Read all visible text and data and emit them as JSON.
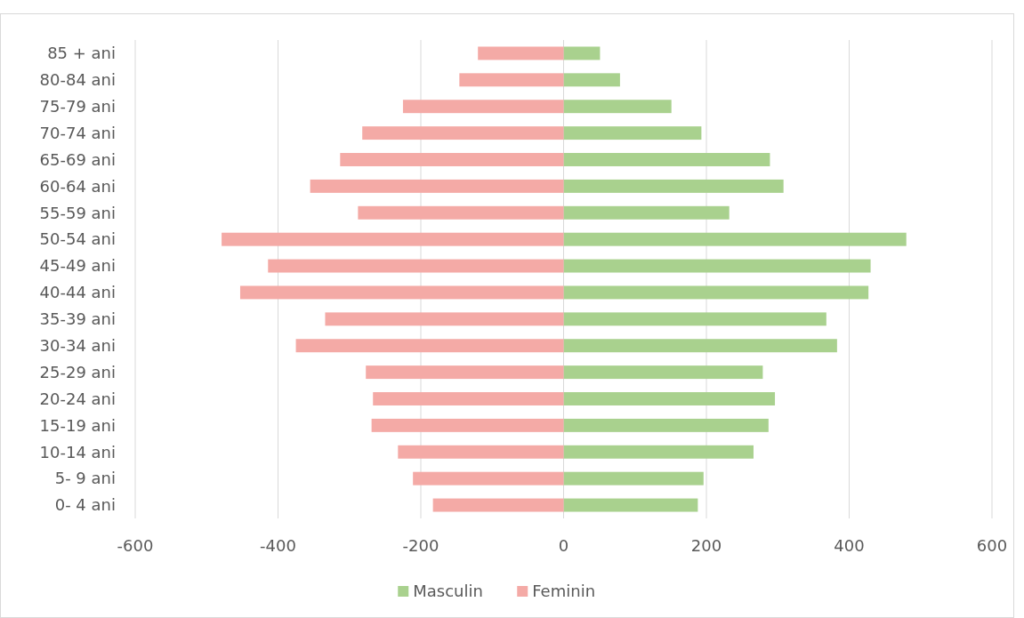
{
  "chart_data": {
    "type": "bar",
    "orientation": "horizontal",
    "stacked": true,
    "categories": [
      "85 + ani",
      "80-84 ani",
      "75-79 ani",
      "70-74 ani",
      "65-69 ani",
      "60-64 ani",
      "55-59 ani",
      "50-54 ani",
      "45-49 ani",
      "40-44 ani",
      "35-39 ani",
      "30-34 ani",
      "25-29 ani",
      "20-24 ani",
      "15-19 ani",
      "10-14 ani",
      "5- 9 ani",
      "0- 4 ani"
    ],
    "series": [
      {
        "name": "Masculin",
        "color": "#a9d18e",
        "values": [
          51,
          79,
          151,
          193,
          289,
          308,
          232,
          480,
          430,
          427,
          368,
          383,
          279,
          296,
          287,
          266,
          196,
          188
        ]
      },
      {
        "name": "Feminin",
        "color": "#f4aaa6",
        "values": [
          -120,
          -146,
          -225,
          -282,
          -313,
          -355,
          -288,
          -479,
          -414,
          -453,
          -334,
          -375,
          -277,
          -267,
          -269,
          -232,
          -211,
          -183
        ]
      }
    ],
    "xlim": [
      -600,
      600
    ],
    "xticks": [
      -600,
      -400,
      -200,
      0,
      200,
      400,
      600
    ],
    "grid": "x",
    "legend": "bottom"
  }
}
